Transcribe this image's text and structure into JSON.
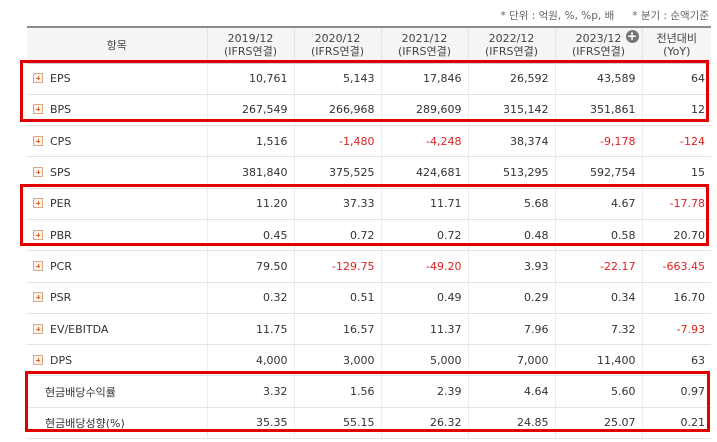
{
  "notes": {
    "unit": "* 단위 : 억원, %, %p, 배",
    "quarter": "* 분기 : 순액기준"
  },
  "columns": [
    {
      "l1": "항목",
      "l2": ""
    },
    {
      "l1": "2019/12",
      "l2": "(IFRS연결)"
    },
    {
      "l1": "2020/12",
      "l2": "(IFRS연결)"
    },
    {
      "l1": "2021/12",
      "l2": "(IFRS연결)"
    },
    {
      "l1": "2022/12",
      "l2": "(IFRS연결)"
    },
    {
      "l1": "2023/12",
      "l2": "(IFRS연결)"
    },
    {
      "l1": "전년대비",
      "l2": "(YoY)"
    }
  ],
  "rows": [
    {
      "label": "EPS",
      "expandable": true,
      "values": [
        "10,761",
        "5,143",
        "17,846",
        "26,592",
        "43,589",
        "64"
      ]
    },
    {
      "label": "BPS",
      "expandable": true,
      "values": [
        "267,549",
        "266,968",
        "289,609",
        "315,142",
        "351,861",
        "12"
      ]
    },
    {
      "label": "CPS",
      "expandable": true,
      "values": [
        "1,516",
        "-1,480",
        "-4,248",
        "38,374",
        "-9,178",
        "-124"
      ]
    },
    {
      "label": "SPS",
      "expandable": true,
      "values": [
        "381,840",
        "375,525",
        "424,681",
        "513,295",
        "592,754",
        "15"
      ]
    },
    {
      "label": "PER",
      "expandable": true,
      "values": [
        "11.20",
        "37.33",
        "11.71",
        "5.68",
        "4.67",
        "-17.78"
      ]
    },
    {
      "label": "PBR",
      "expandable": true,
      "values": [
        "0.45",
        "0.72",
        "0.72",
        "0.48",
        "0.58",
        "20.70"
      ]
    },
    {
      "label": "PCR",
      "expandable": true,
      "values": [
        "79.50",
        "-129.75",
        "-49.20",
        "3.93",
        "-22.17",
        "-663.45"
      ]
    },
    {
      "label": "PSR",
      "expandable": true,
      "values": [
        "0.32",
        "0.51",
        "0.49",
        "0.29",
        "0.34",
        "16.70"
      ]
    },
    {
      "label": "EV/EBITDA",
      "expandable": true,
      "values": [
        "11.75",
        "16.57",
        "11.37",
        "7.96",
        "7.32",
        "-7.93"
      ]
    },
    {
      "label": "DPS",
      "expandable": true,
      "values": [
        "4,000",
        "3,000",
        "5,000",
        "7,000",
        "11,400",
        "63"
      ]
    },
    {
      "label": "현금배당수익률",
      "expandable": false,
      "values": [
        "3.32",
        "1.56",
        "2.39",
        "4.64",
        "5.60",
        "0.97"
      ]
    },
    {
      "label": "현금배당성향(%)",
      "expandable": false,
      "values": [
        "35.35",
        "55.15",
        "26.32",
        "24.85",
        "25.07",
        "0.21"
      ]
    }
  ],
  "colors": {
    "negative": "#e02020",
    "highlight": "#e00000",
    "expand_icon": "#e5621c"
  }
}
